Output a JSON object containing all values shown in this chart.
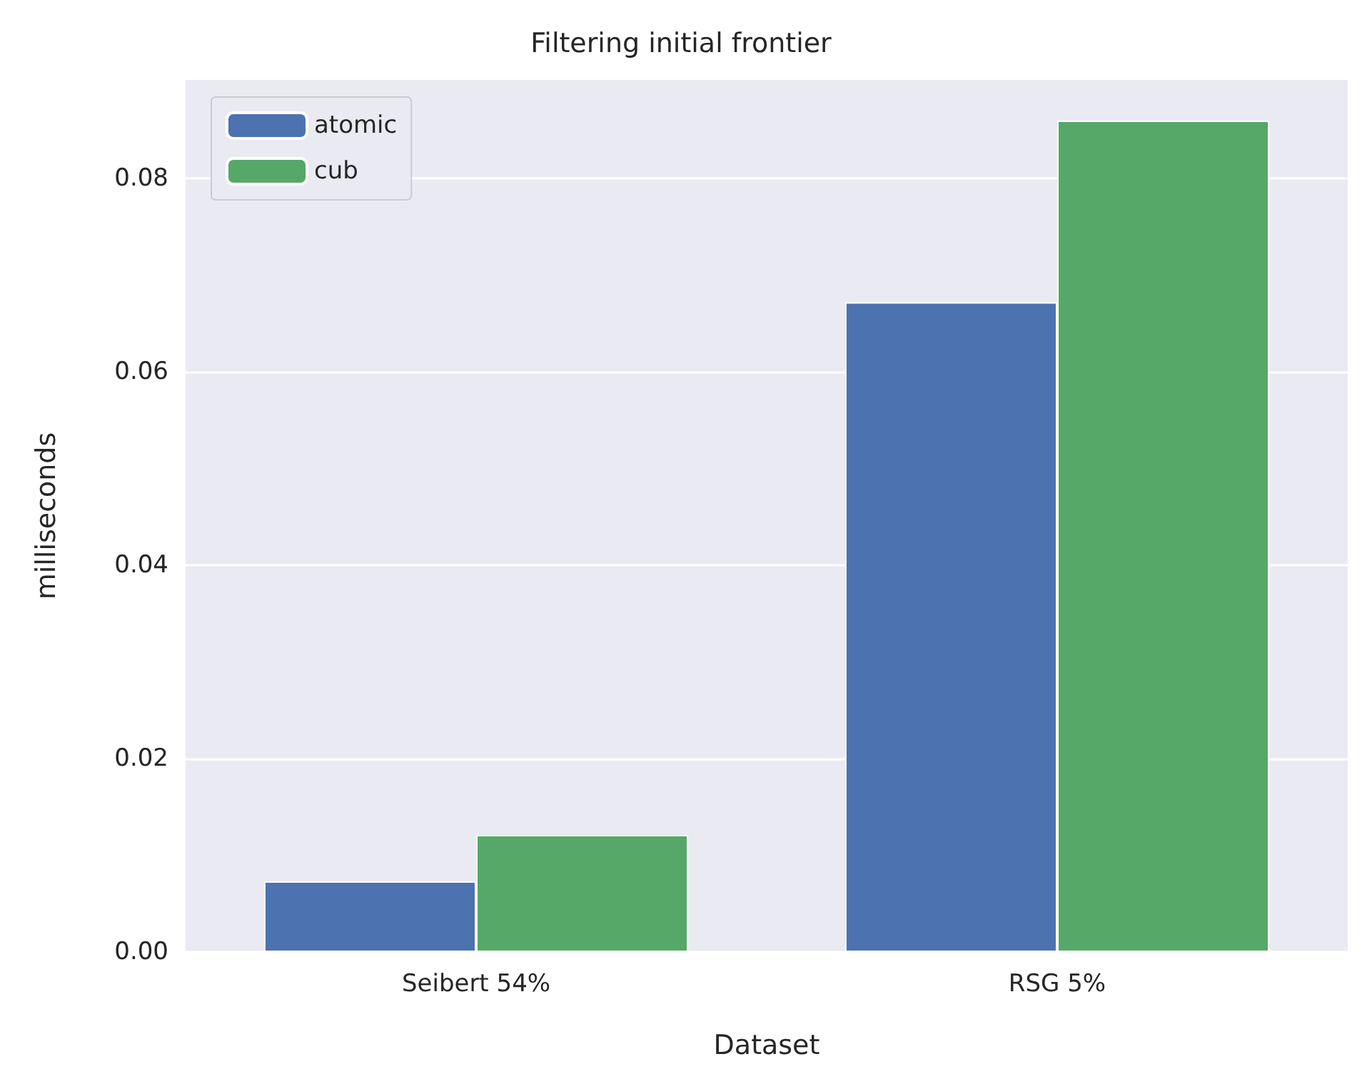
{
  "chart_data": {
    "type": "bar",
    "title": "Filtering initial frontier",
    "xlabel": "Dataset",
    "ylabel": "milliseconds",
    "categories": [
      "Seibert 54%",
      "RSG 5%"
    ],
    "series": [
      {
        "name": "atomic",
        "color": "#4c72b0",
        "values": [
          0.0073,
          0.0672
        ]
      },
      {
        "name": "cub",
        "color": "#55a868",
        "values": [
          0.0121,
          0.086
        ]
      }
    ],
    "ylim": [
      0,
      0.0902
    ],
    "yticks": [
      {
        "value": 0,
        "label": "0.00"
      },
      {
        "value": 0.02,
        "label": "0.02"
      },
      {
        "value": 0.04,
        "label": "0.04"
      },
      {
        "value": 0.06,
        "label": "0.06"
      },
      {
        "value": 0.08,
        "label": "0.08"
      }
    ],
    "grid": true,
    "legend": "top left"
  }
}
